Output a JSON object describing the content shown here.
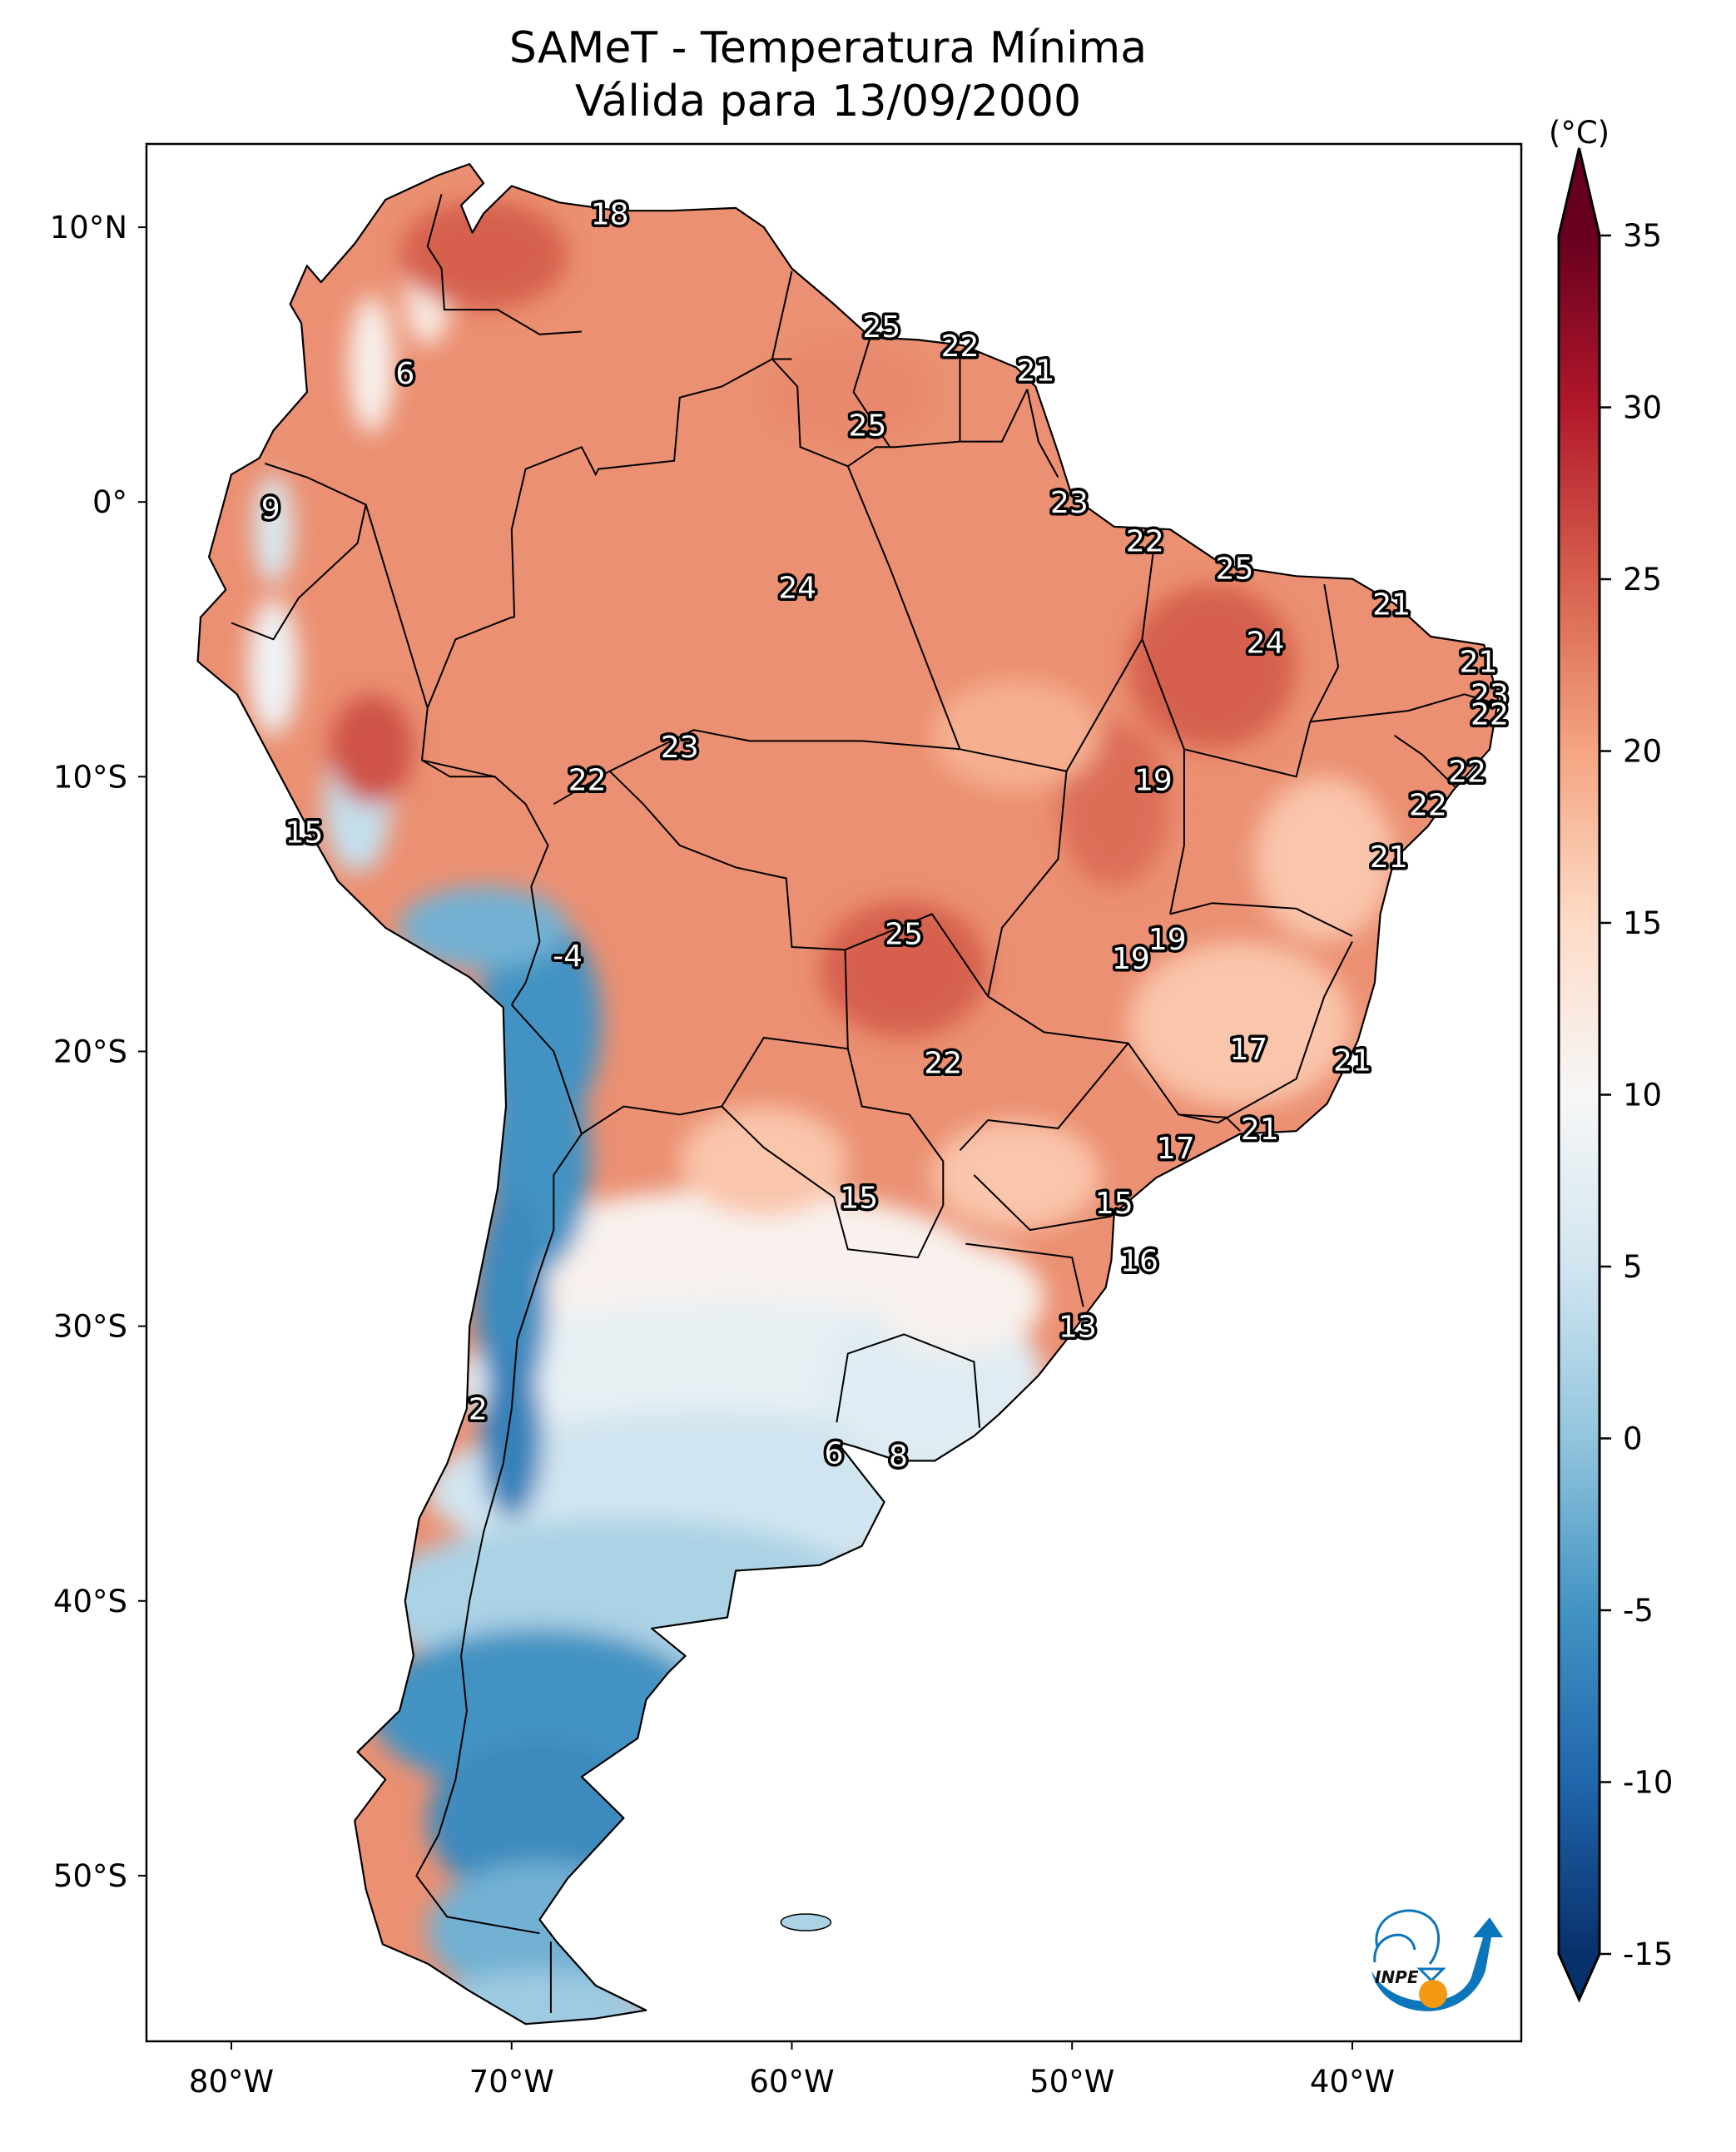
{
  "title": {
    "line1": "SAMeT - Temperatura Mínima",
    "line2": "Válida para 13/09/2000"
  },
  "logo": {
    "text": "INPE",
    "colors": {
      "blue": "#0b76bc",
      "orange": "#f39a12"
    }
  },
  "chart_data": {
    "type": "heatmap",
    "title": "SAMeT - Temperatura Mínima Válida para 13/09/2000",
    "variable": "Minimum temperature",
    "units_label": "(°C)",
    "xlabel": "",
    "ylabel": "",
    "xlim": [
      -83,
      -34
    ],
    "ylim": [
      -56,
      13
    ],
    "x_ticks": [
      {
        "value": -80,
        "label": "80°W"
      },
      {
        "value": -70,
        "label": "70°W"
      },
      {
        "value": -60,
        "label": "60°W"
      },
      {
        "value": -50,
        "label": "50°W"
      },
      {
        "value": -40,
        "label": "40°W"
      }
    ],
    "y_ticks": [
      {
        "value": 10,
        "label": "10°N"
      },
      {
        "value": 0,
        "label": "0°"
      },
      {
        "value": -10,
        "label": "10°S"
      },
      {
        "value": -20,
        "label": "20°S"
      },
      {
        "value": -30,
        "label": "30°S"
      },
      {
        "value": -40,
        "label": "40°S"
      },
      {
        "value": -50,
        "label": "50°S"
      }
    ],
    "colorbar": {
      "label": "(°C)",
      "vmin": -15,
      "vmax": 35,
      "extend": "both",
      "colormap": "RdBu_r",
      "ticks": [
        {
          "value": 35,
          "label": "35"
        },
        {
          "value": 30,
          "label": "30"
        },
        {
          "value": 25,
          "label": "25"
        },
        {
          "value": 20,
          "label": "20"
        },
        {
          "value": 15,
          "label": "15"
        },
        {
          "value": 10,
          "label": "10"
        },
        {
          "value": 5,
          "label": "5"
        },
        {
          "value": 0,
          "label": "0"
        },
        {
          "value": -5,
          "label": "-5"
        },
        {
          "value": -10,
          "label": "-10"
        },
        {
          "value": -15,
          "label": "-15"
        }
      ],
      "color_stops": [
        {
          "value": -15,
          "color": "#08306b"
        },
        {
          "value": -10,
          "color": "#2166ac"
        },
        {
          "value": -5,
          "color": "#4393c3"
        },
        {
          "value": 0,
          "color": "#92c5de"
        },
        {
          "value": 5,
          "color": "#d1e5f0"
        },
        {
          "value": 10,
          "color": "#f7f7f7"
        },
        {
          "value": 15,
          "color": "#fddbc7"
        },
        {
          "value": 20,
          "color": "#f4a582"
        },
        {
          "value": 25,
          "color": "#d6604d"
        },
        {
          "value": 30,
          "color": "#b2182b"
        },
        {
          "value": 35,
          "color": "#67001f"
        }
      ]
    },
    "point_labels": [
      {
        "lon": -66.5,
        "lat": 10.5,
        "value": 18
      },
      {
        "lon": -73.8,
        "lat": 4.7,
        "value": 6
      },
      {
        "lon": -56.8,
        "lat": 6.4,
        "value": 25
      },
      {
        "lon": -54.0,
        "lat": 5.7,
        "value": 22
      },
      {
        "lon": -51.3,
        "lat": 4.8,
        "value": 21
      },
      {
        "lon": -57.3,
        "lat": 2.8,
        "value": 25
      },
      {
        "lon": -50.1,
        "lat": 0.0,
        "value": 23
      },
      {
        "lon": -78.6,
        "lat": -0.2,
        "value": 9
      },
      {
        "lon": -47.4,
        "lat": -1.4,
        "value": 22
      },
      {
        "lon": -44.2,
        "lat": -2.4,
        "value": 25
      },
      {
        "lon": -59.8,
        "lat": -3.1,
        "value": 24
      },
      {
        "lon": -38.6,
        "lat": -3.7,
        "value": 21
      },
      {
        "lon": -43.1,
        "lat": -5.1,
        "value": 24
      },
      {
        "lon": -35.5,
        "lat": -5.8,
        "value": 21
      },
      {
        "lon": -35.1,
        "lat": -7.0,
        "value": 23
      },
      {
        "lon": -35.1,
        "lat": -7.7,
        "value": 22
      },
      {
        "lon": -64.0,
        "lat": -8.9,
        "value": 23
      },
      {
        "lon": -67.3,
        "lat": -10.1,
        "value": 22
      },
      {
        "lon": -47.1,
        "lat": -10.1,
        "value": 19
      },
      {
        "lon": -35.9,
        "lat": -9.8,
        "value": 22
      },
      {
        "lon": -37.3,
        "lat": -11.0,
        "value": 22
      },
      {
        "lon": -77.4,
        "lat": -12.0,
        "value": 15
      },
      {
        "lon": -38.7,
        "lat": -12.9,
        "value": 21
      },
      {
        "lon": -56.0,
        "lat": -15.7,
        "value": 25
      },
      {
        "lon": -46.6,
        "lat": -15.9,
        "value": 19
      },
      {
        "lon": -47.9,
        "lat": -16.6,
        "value": 19
      },
      {
        "lon": -68.0,
        "lat": -16.5,
        "value": -4
      },
      {
        "lon": -43.7,
        "lat": -19.9,
        "value": 17
      },
      {
        "lon": -54.6,
        "lat": -20.4,
        "value": 22
      },
      {
        "lon": -40.0,
        "lat": -20.3,
        "value": 21
      },
      {
        "lon": -43.3,
        "lat": -22.8,
        "value": 21
      },
      {
        "lon": -46.3,
        "lat": -23.5,
        "value": 17
      },
      {
        "lon": -57.6,
        "lat": -25.3,
        "value": 15
      },
      {
        "lon": -48.5,
        "lat": -25.5,
        "value": 15
      },
      {
        "lon": -47.6,
        "lat": -27.6,
        "value": 16
      },
      {
        "lon": -49.8,
        "lat": -30.0,
        "value": 13
      },
      {
        "lon": -71.2,
        "lat": -33.0,
        "value": 2
      },
      {
        "lon": -58.5,
        "lat": -34.6,
        "value": 6
      },
      {
        "lon": -56.2,
        "lat": -34.7,
        "value": 8
      }
    ]
  }
}
